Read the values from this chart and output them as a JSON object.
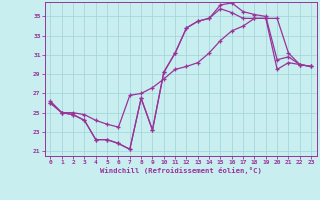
{
  "xlabel": "Windchill (Refroidissement éolien,°C)",
  "bg_color": "#c8eef0",
  "line_color": "#993399",
  "grid_color": "#9fd4d8",
  "xlim": [
    -0.5,
    23.5
  ],
  "ylim": [
    20.5,
    36.5
  ],
  "yticks": [
    21,
    23,
    25,
    27,
    29,
    31,
    33,
    35
  ],
  "xticks": [
    0,
    1,
    2,
    3,
    4,
    5,
    6,
    7,
    8,
    9,
    10,
    11,
    12,
    13,
    14,
    15,
    16,
    17,
    18,
    19,
    20,
    21,
    22,
    23
  ],
  "line1_x": [
    0,
    1,
    2,
    3,
    4,
    5,
    6,
    7,
    8,
    9,
    10,
    11,
    12,
    13,
    14,
    15,
    16,
    17,
    18,
    19,
    20,
    21,
    22,
    23
  ],
  "line1_y": [
    26.0,
    25.0,
    24.8,
    24.2,
    22.2,
    22.2,
    21.8,
    21.2,
    26.5,
    23.2,
    29.2,
    31.2,
    33.8,
    34.5,
    34.8,
    36.2,
    36.4,
    35.5,
    35.2,
    35.0,
    30.5,
    30.8,
    30.0,
    29.8
  ],
  "line2_x": [
    0,
    1,
    2,
    3,
    4,
    5,
    6,
    7,
    8,
    9,
    10,
    11,
    12,
    13,
    14,
    15,
    16,
    17,
    18,
    19,
    20,
    21,
    22,
    23
  ],
  "line2_y": [
    26.0,
    25.0,
    24.8,
    24.2,
    22.2,
    22.2,
    21.8,
    21.2,
    26.5,
    23.2,
    29.2,
    31.2,
    33.8,
    34.5,
    34.8,
    35.8,
    35.4,
    34.8,
    34.8,
    34.8,
    34.8,
    31.2,
    30.0,
    29.8
  ],
  "line3_x": [
    0,
    1,
    2,
    3,
    4,
    5,
    6,
    7,
    8,
    9,
    10,
    11,
    12,
    13,
    14,
    15,
    16,
    17,
    18,
    19,
    20,
    21,
    22,
    23
  ],
  "line3_y": [
    26.2,
    25.0,
    25.0,
    24.8,
    24.2,
    23.8,
    23.5,
    26.8,
    27.0,
    27.6,
    28.5,
    29.5,
    29.8,
    30.2,
    31.2,
    32.5,
    33.5,
    34.0,
    34.8,
    34.8,
    29.5,
    30.2,
    30.0,
    29.8
  ]
}
